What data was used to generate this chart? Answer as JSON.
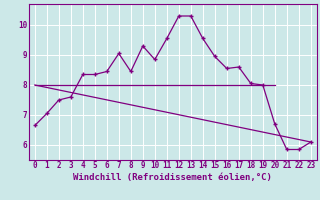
{
  "xlabel": "Windchill (Refroidissement éolien,°C)",
  "background_color": "#cce8e8",
  "line_color": "#800080",
  "grid_color": "#ffffff",
  "xlim": [
    -0.5,
    23.5
  ],
  "ylim": [
    5.5,
    10.7
  ],
  "yticks": [
    6,
    7,
    8,
    9,
    10
  ],
  "xticks": [
    0,
    1,
    2,
    3,
    4,
    5,
    6,
    7,
    8,
    9,
    10,
    11,
    12,
    13,
    14,
    15,
    16,
    17,
    18,
    19,
    20,
    21,
    22,
    23
  ],
  "main_x": [
    0,
    1,
    2,
    3,
    4,
    5,
    6,
    7,
    8,
    9,
    10,
    11,
    12,
    13,
    14,
    15,
    16,
    17,
    18,
    19,
    20,
    21,
    22,
    23
  ],
  "main_y": [
    6.65,
    7.05,
    7.5,
    7.6,
    8.35,
    8.35,
    8.45,
    9.05,
    8.45,
    9.3,
    8.85,
    9.55,
    10.3,
    10.3,
    9.55,
    8.95,
    8.55,
    8.6,
    8.05,
    8.0,
    6.7,
    5.85,
    5.85,
    6.1
  ],
  "line1_x": [
    0,
    20
  ],
  "line1_y": [
    8.0,
    8.0
  ],
  "line2_x": [
    0,
    23
  ],
  "line2_y": [
    8.0,
    6.1
  ],
  "tick_fontsize": 5.5,
  "xlabel_fontsize": 6.5
}
